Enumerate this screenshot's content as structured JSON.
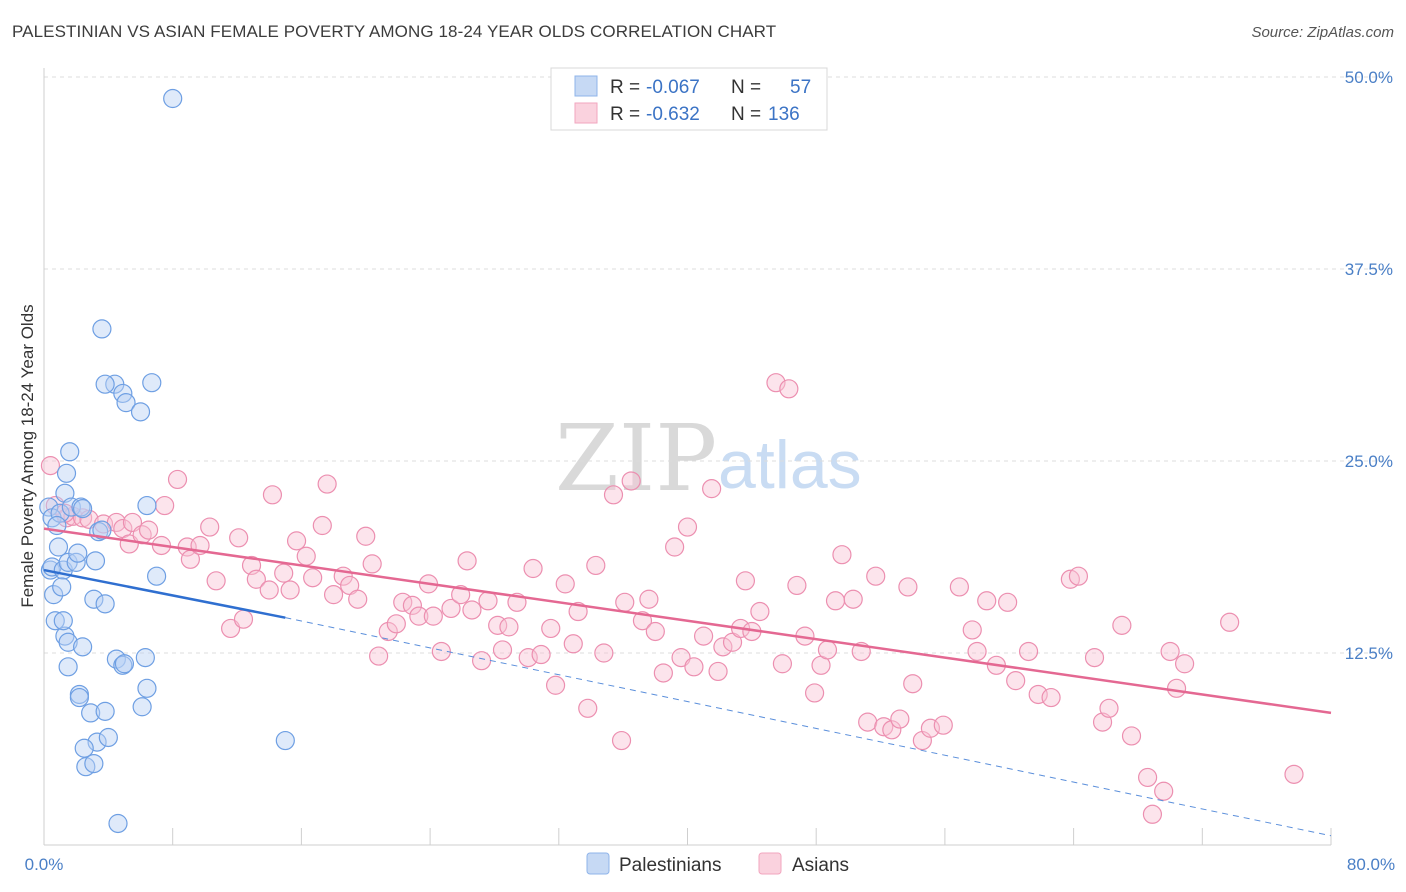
{
  "title": "PALESTINIAN VS ASIAN FEMALE POVERTY AMONG 18-24 YEAR OLDS CORRELATION CHART",
  "source": "Source: ZipAtlas.com",
  "watermark": {
    "left": "ZIP",
    "right": "atlas"
  },
  "legend_top": [
    {
      "r_label": "R =",
      "r_value": "-0.067",
      "n_label": "N =",
      "n_value": "57",
      "color": "#8fb4ea"
    },
    {
      "r_label": "R =",
      "r_value": "-0.632",
      "n_label": "N =",
      "n_value": "136",
      "color": "#f2a6bf"
    }
  ],
  "legend_bottom": [
    {
      "label": "Palestinians",
      "color": "#8fb4ea"
    },
    {
      "label": "Asians",
      "color": "#f2a6bf"
    }
  ],
  "chart_data": {
    "type": "scatter",
    "title": "PALESTINIAN VS ASIAN FEMALE POVERTY AMONG 18-24 YEAR OLDS CORRELATION CHART",
    "xlabel": "",
    "ylabel": "Female Poverty Among 18-24 Year Olds",
    "xlim": [
      0,
      80
    ],
    "ylim": [
      0,
      50
    ],
    "x_tick_labels": [
      "0.0%",
      "80.0%"
    ],
    "y_ticks": [
      12.5,
      25.0,
      37.5,
      50.0
    ],
    "y_tick_labels": [
      "12.5%",
      "25.0%",
      "37.5%",
      "50.0%"
    ],
    "grid": "horizontal dashed",
    "series": [
      {
        "name": "Palestinians",
        "color": "#6e9fe3",
        "trend": {
          "x": [
            0,
            15
          ],
          "y": [
            17.9,
            14.8
          ],
          "extended_to": [
            80,
            0.6
          ]
        },
        "points": [
          [
            0.3,
            22.0
          ],
          [
            0.5,
            21.3
          ],
          [
            0.6,
            16.3
          ],
          [
            0.4,
            17.9
          ],
          [
            0.5,
            18.1
          ],
          [
            0.9,
            19.4
          ],
          [
            0.7,
            14.6
          ],
          [
            1.0,
            21.6
          ],
          [
            1.2,
            17.9
          ],
          [
            1.1,
            16.8
          ],
          [
            1.4,
            24.2
          ],
          [
            1.6,
            25.6
          ],
          [
            1.3,
            22.9
          ],
          [
            1.7,
            22.0
          ],
          [
            1.5,
            18.4
          ],
          [
            1.3,
            13.6
          ],
          [
            1.5,
            13.2
          ],
          [
            1.2,
            14.6
          ],
          [
            2.3,
            22.0
          ],
          [
            2.0,
            18.4
          ],
          [
            2.1,
            19.0
          ],
          [
            2.4,
            21.9
          ],
          [
            3.4,
            20.4
          ],
          [
            3.6,
            20.5
          ],
          [
            3.1,
            16.0
          ],
          [
            3.8,
            15.7
          ],
          [
            1.5,
            11.6
          ],
          [
            2.4,
            12.9
          ],
          [
            2.2,
            9.8
          ],
          [
            2.2,
            9.6
          ],
          [
            2.9,
            8.6
          ],
          [
            3.8,
            8.7
          ],
          [
            3.3,
            6.7
          ],
          [
            4.0,
            7.0
          ],
          [
            4.5,
            12.1
          ],
          [
            4.9,
            11.7
          ],
          [
            5.0,
            11.8
          ],
          [
            6.3,
            12.2
          ],
          [
            6.4,
            10.2
          ],
          [
            6.1,
            9.0
          ],
          [
            2.5,
            6.3
          ],
          [
            2.6,
            5.1
          ],
          [
            3.1,
            5.3
          ],
          [
            4.6,
            1.4
          ],
          [
            3.6,
            33.6
          ],
          [
            4.4,
            30.0
          ],
          [
            3.8,
            30.0
          ],
          [
            4.9,
            29.4
          ],
          [
            5.1,
            28.8
          ],
          [
            6.0,
            28.2
          ],
          [
            6.7,
            30.1
          ],
          [
            6.4,
            22.1
          ],
          [
            8.0,
            48.6
          ],
          [
            15.0,
            6.8
          ],
          [
            7.0,
            17.5
          ],
          [
            3.2,
            18.5
          ],
          [
            0.8,
            20.8
          ]
        ]
      },
      {
        "name": "Asians",
        "color": "#ef8fb0",
        "trend": {
          "x": [
            0,
            80
          ],
          "y": [
            20.6,
            8.6
          ]
        },
        "points": [
          [
            0.4,
            24.7
          ],
          [
            0.7,
            22.1
          ],
          [
            1.4,
            21.3
          ],
          [
            1.8,
            21.4
          ],
          [
            2.4,
            21.3
          ],
          [
            2.8,
            21.2
          ],
          [
            3.7,
            20.9
          ],
          [
            4.5,
            21.0
          ],
          [
            4.9,
            20.6
          ],
          [
            5.5,
            21.0
          ],
          [
            5.3,
            19.6
          ],
          [
            6.1,
            20.2
          ],
          [
            6.5,
            20.5
          ],
          [
            7.3,
            19.5
          ],
          [
            7.5,
            22.1
          ],
          [
            8.3,
            23.8
          ],
          [
            8.9,
            19.4
          ],
          [
            9.1,
            18.6
          ],
          [
            9.7,
            19.5
          ],
          [
            10.3,
            20.7
          ],
          [
            10.7,
            17.2
          ],
          [
            11.6,
            14.1
          ],
          [
            12.1,
            20.0
          ],
          [
            12.4,
            14.7
          ],
          [
            12.9,
            18.2
          ],
          [
            13.2,
            17.3
          ],
          [
            14.0,
            16.6
          ],
          [
            14.2,
            22.8
          ],
          [
            14.9,
            17.7
          ],
          [
            15.3,
            16.6
          ],
          [
            15.7,
            19.8
          ],
          [
            16.3,
            18.8
          ],
          [
            16.7,
            17.4
          ],
          [
            17.3,
            20.8
          ],
          [
            17.6,
            23.5
          ],
          [
            18.0,
            16.3
          ],
          [
            18.6,
            17.5
          ],
          [
            19.0,
            16.9
          ],
          [
            19.5,
            16.0
          ],
          [
            20.0,
            20.1
          ],
          [
            20.4,
            18.3
          ],
          [
            20.8,
            12.3
          ],
          [
            21.4,
            13.9
          ],
          [
            21.9,
            14.4
          ],
          [
            22.3,
            15.8
          ],
          [
            22.9,
            15.6
          ],
          [
            23.3,
            14.9
          ],
          [
            23.9,
            17.0
          ],
          [
            24.2,
            14.9
          ],
          [
            24.7,
            12.6
          ],
          [
            25.3,
            15.4
          ],
          [
            25.9,
            16.3
          ],
          [
            26.3,
            18.5
          ],
          [
            26.6,
            15.3
          ],
          [
            27.2,
            12.0
          ],
          [
            27.6,
            15.9
          ],
          [
            28.2,
            14.3
          ],
          [
            28.5,
            12.7
          ],
          [
            28.9,
            14.2
          ],
          [
            29.4,
            15.8
          ],
          [
            30.1,
            12.2
          ],
          [
            30.4,
            18.0
          ],
          [
            30.9,
            12.4
          ],
          [
            31.5,
            14.1
          ],
          [
            31.8,
            10.4
          ],
          [
            32.4,
            17.0
          ],
          [
            32.9,
            13.1
          ],
          [
            33.2,
            15.2
          ],
          [
            33.8,
            8.9
          ],
          [
            34.3,
            18.2
          ],
          [
            34.8,
            12.5
          ],
          [
            35.4,
            22.8
          ],
          [
            35.9,
            6.8
          ],
          [
            36.1,
            15.8
          ],
          [
            36.5,
            23.7
          ],
          [
            37.2,
            14.6
          ],
          [
            37.6,
            16.0
          ],
          [
            38.0,
            13.9
          ],
          [
            38.5,
            11.2
          ],
          [
            39.2,
            19.4
          ],
          [
            39.6,
            12.2
          ],
          [
            40.0,
            20.7
          ],
          [
            40.4,
            11.6
          ],
          [
            41.0,
            13.6
          ],
          [
            41.5,
            23.2
          ],
          [
            41.9,
            11.3
          ],
          [
            42.2,
            12.9
          ],
          [
            42.8,
            13.2
          ],
          [
            43.3,
            14.1
          ],
          [
            43.6,
            17.2
          ],
          [
            44.0,
            13.9
          ],
          [
            44.5,
            15.2
          ],
          [
            45.5,
            30.1
          ],
          [
            46.3,
            29.7
          ],
          [
            45.9,
            11.8
          ],
          [
            46.8,
            16.9
          ],
          [
            47.3,
            13.6
          ],
          [
            47.9,
            9.9
          ],
          [
            48.3,
            11.7
          ],
          [
            48.7,
            12.7
          ],
          [
            49.2,
            15.9
          ],
          [
            49.6,
            18.9
          ],
          [
            50.3,
            16.0
          ],
          [
            50.8,
            12.6
          ],
          [
            51.2,
            8.0
          ],
          [
            51.7,
            17.5
          ],
          [
            52.2,
            7.7
          ],
          [
            52.7,
            7.5
          ],
          [
            53.2,
            8.2
          ],
          [
            53.7,
            16.8
          ],
          [
            54.0,
            10.5
          ],
          [
            54.6,
            6.8
          ],
          [
            55.1,
            7.6
          ],
          [
            55.9,
            7.8
          ],
          [
            56.9,
            16.8
          ],
          [
            57.7,
            14.0
          ],
          [
            58.0,
            12.6
          ],
          [
            58.6,
            15.9
          ],
          [
            59.2,
            11.7
          ],
          [
            59.9,
            15.8
          ],
          [
            60.4,
            10.7
          ],
          [
            61.2,
            12.6
          ],
          [
            61.8,
            9.8
          ],
          [
            62.6,
            9.6
          ],
          [
            63.8,
            17.3
          ],
          [
            64.3,
            17.5
          ],
          [
            65.3,
            12.2
          ],
          [
            65.8,
            8.0
          ],
          [
            66.2,
            8.9
          ],
          [
            67.0,
            14.3
          ],
          [
            67.6,
            7.1
          ],
          [
            68.6,
            4.4
          ],
          [
            68.9,
            2.0
          ],
          [
            69.6,
            3.5
          ],
          [
            70.0,
            12.6
          ],
          [
            70.4,
            10.2
          ],
          [
            70.9,
            11.8
          ],
          [
            73.7,
            14.5
          ],
          [
            77.7,
            4.6
          ],
          [
            1.3,
            21.6
          ]
        ]
      }
    ]
  }
}
